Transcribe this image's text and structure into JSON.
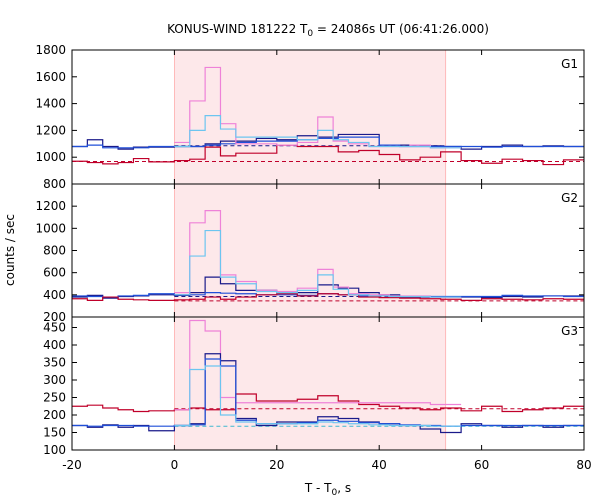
{
  "chart_data": {
    "type": "line",
    "title_main": "KONUS-WIND 181222 T",
    "title_sub": "0",
    "title_rest": " = 24086s UT (06:41:26.000)",
    "xlabel_main": "T - T",
    "xlabel_sub": "0",
    "xlabel_rest": ", s",
    "ylabel": "counts / sec",
    "xlim": [
      -20,
      80
    ],
    "x_ticks": [
      -20,
      0,
      20,
      40,
      60,
      80
    ],
    "shaded_interval": [
      0,
      53
    ],
    "colors": {
      "shade": "#fde8ea",
      "shade_edge": "#ff9999",
      "pink": "#ee82d8",
      "sky": "#6cc5f0",
      "navy": "#1a1a8a",
      "crimson": "#c0002a",
      "blue": "#1f4fd8",
      "teal": "#3fb8d0"
    },
    "panels": [
      {
        "label": "G1",
        "ylim": [
          800,
          1800
        ],
        "y_ticks": [
          800,
          1000,
          1200,
          1400,
          1600,
          1800
        ],
        "bg_lines": [
          {
            "y": 1085,
            "x_from": 0,
            "x_to": 53,
            "color": "navy",
            "dash": true
          },
          {
            "y": 968,
            "x_from": -20,
            "x_to": 80,
            "color": "crimson",
            "dash": true
          }
        ],
        "series": [
          {
            "color": "navy",
            "x": [
              -20,
              -17,
              -14,
              -11,
              -8,
              -5,
              0,
              3,
              6,
              9,
              12,
              16,
              20,
              24,
              28,
              32,
              36,
              40,
              44,
              48,
              52,
              56,
              60,
              64,
              68,
              72,
              76,
              80
            ],
            "y": [
              1080,
              1130,
              1080,
              1060,
              1075,
              1075,
              1080,
              1080,
              1100,
              1120,
              1120,
              1140,
              1130,
              1160,
              1150,
              1170,
              1170,
              1090,
              1090,
              1085,
              1080,
              1060,
              1080,
              1090,
              1080,
              1085,
              1080,
              1080
            ]
          },
          {
            "color": "blue",
            "x": [
              -20,
              -17,
              -14,
              -11,
              -8,
              -5,
              0,
              3,
              6,
              9,
              12,
              16,
              20,
              24,
              28,
              32,
              36,
              40,
              44,
              48,
              52,
              56,
              60,
              64,
              68,
              72,
              76,
              80
            ],
            "y": [
              1080,
              1090,
              1070,
              1070,
              1070,
              1080,
              1080,
              1080,
              1090,
              1100,
              1110,
              1120,
              1120,
              1130,
              1140,
              1150,
              1150,
              1090,
              1080,
              1080,
              1080,
              1080,
              1075,
              1080,
              1080,
              1080,
              1080,
              1080
            ]
          },
          {
            "color": "crimson",
            "x": [
              -20,
              -17,
              -14,
              -11,
              -8,
              -5,
              0,
              3,
              6,
              9,
              12,
              16,
              20,
              24,
              28,
              32,
              36,
              40,
              44,
              48,
              52,
              56,
              60,
              64,
              68,
              72,
              76,
              80
            ],
            "y": [
              970,
              960,
              950,
              960,
              990,
              965,
              975,
              985,
              1075,
              1010,
              1030,
              1030,
              1090,
              1080,
              1080,
              1040,
              1050,
              1020,
              980,
              1000,
              1040,
              975,
              955,
              985,
              975,
              945,
              980,
              975
            ]
          },
          {
            "color": "pink",
            "x": [
              0,
              3,
              6,
              9,
              12,
              16,
              20,
              24,
              28,
              31,
              34,
              38,
              42,
              46,
              50,
              53
            ],
            "y": [
              1110,
              1420,
              1670,
              1250,
              1100,
              1100,
              1090,
              1110,
              1300,
              1120,
              1100,
              1080,
              1080,
              1090,
              1070,
              1070
            ]
          },
          {
            "color": "sky",
            "x": [
              0,
              3,
              6,
              9,
              12,
              16,
              20,
              24,
              28,
              31,
              34,
              38,
              42,
              46,
              50,
              53
            ],
            "y": [
              1080,
              1200,
              1310,
              1210,
              1150,
              1150,
              1150,
              1130,
              1200,
              1130,
              1110,
              1080,
              1080,
              1080,
              1070,
              1070
            ]
          }
        ]
      },
      {
        "label": "G2",
        "ylim": [
          200,
          1400
        ],
        "y_ticks": [
          200,
          400,
          600,
          800,
          1000,
          1200
        ],
        "bg_lines": [
          {
            "y": 385,
            "x_from": 0,
            "x_to": 53,
            "color": "navy",
            "dash": true
          },
          {
            "y": 345,
            "x_from": 0,
            "x_to": 80,
            "color": "crimson",
            "dash": true
          }
        ],
        "series": [
          {
            "color": "navy",
            "x": [
              -20,
              -17,
              -14,
              -11,
              -8,
              -5,
              0,
              3,
              6,
              9,
              12,
              16,
              20,
              24,
              28,
              32,
              36,
              40,
              44,
              48,
              52,
              56,
              60,
              64,
              68,
              72,
              76,
              80
            ],
            "y": [
              380,
              395,
              370,
              385,
              390,
              400,
              395,
              420,
              560,
              500,
              440,
              440,
              420,
              420,
              490,
              460,
              420,
              400,
              380,
              380,
              380,
              380,
              375,
              385,
              380,
              390,
              390,
              380
            ]
          },
          {
            "color": "blue",
            "x": [
              -20,
              -17,
              -14,
              -11,
              -8,
              -5,
              0,
              3,
              6,
              9,
              12,
              16,
              20,
              24,
              28,
              32,
              36,
              40,
              44,
              48,
              52,
              56,
              60,
              64,
              68,
              72,
              76,
              80
            ],
            "y": [
              390,
              385,
              380,
              390,
              395,
              410,
              400,
              400,
              420,
              415,
              410,
              400,
              400,
              395,
              410,
              400,
              390,
              390,
              385,
              385,
              385,
              385,
              385,
              395,
              390,
              390,
              385,
              385
            ]
          },
          {
            "color": "crimson",
            "x": [
              -20,
              -17,
              -14,
              -11,
              -8,
              -5,
              0,
              3,
              6,
              9,
              12,
              16,
              20,
              24,
              28,
              32,
              36,
              40,
              44,
              48,
              52,
              56,
              60,
              64,
              68,
              72,
              76,
              80
            ],
            "y": [
              365,
              350,
              380,
              360,
              355,
              350,
              355,
              360,
              380,
              360,
              380,
              400,
              410,
              390,
              410,
              400,
              380,
              375,
              370,
              365,
              360,
              350,
              365,
              360,
              355,
              365,
              360,
              360
            ]
          },
          {
            "color": "pink",
            "x": [
              0,
              3,
              6,
              9,
              12,
              16,
              20,
              24,
              28,
              31,
              34,
              38,
              42,
              46,
              50,
              53
            ],
            "y": [
              420,
              1050,
              1160,
              580,
              520,
              440,
              430,
              460,
              630,
              470,
              410,
              400,
              390,
              390,
              380,
              380
            ]
          },
          {
            "color": "sky",
            "x": [
              0,
              3,
              6,
              9,
              12,
              16,
              20,
              24,
              28,
              31,
              34,
              38,
              42,
              46,
              50,
              53
            ],
            "y": [
              400,
              750,
              980,
              560,
              500,
              430,
              420,
              440,
              580,
              450,
              400,
              390,
              385,
              385,
              380,
              380
            ]
          }
        ]
      },
      {
        "label": "G3",
        "ylim": [
          100,
          480
        ],
        "y_ticks": [
          100,
          150,
          200,
          250,
          300,
          350,
          400,
          450
        ],
        "bg_lines": [
          {
            "y": 218,
            "x_from": 0,
            "x_to": 80,
            "color": "crimson",
            "dash": true
          },
          {
            "y": 168,
            "x_from": 0,
            "x_to": 80,
            "color": "teal",
            "dash": true
          }
        ],
        "series": [
          {
            "color": "crimson",
            "x": [
              -20,
              -17,
              -14,
              -11,
              -8,
              -5,
              0,
              3,
              6,
              9,
              12,
              16,
              20,
              24,
              28,
              32,
              36,
              40,
              44,
              48,
              52,
              56,
              60,
              64,
              68,
              72,
              76,
              80
            ],
            "y": [
              225,
              228,
              220,
              215,
              210,
              212,
              215,
              220,
              215,
              215,
              260,
              240,
              240,
              245,
              255,
              240,
              230,
              225,
              220,
              215,
              220,
              212,
              225,
              210,
              215,
              220,
              225,
              215
            ]
          },
          {
            "color": "pink",
            "x": [
              0,
              3,
              6,
              9,
              12,
              16,
              20,
              24,
              28,
              31,
              34,
              38,
              42,
              46,
              50,
              53
            ],
            "y": [
              215,
              470,
              440,
              250,
              235,
              235,
              235,
              235,
              235,
              235,
              235,
              235,
              235,
              235,
              230,
              230
            ]
          },
          {
            "color": "navy",
            "x": [
              -20,
              -17,
              -14,
              -11,
              -8,
              -5,
              0,
              3,
              6,
              9,
              12,
              16,
              20,
              24,
              28,
              32,
              36,
              40,
              44,
              48,
              52,
              56,
              60,
              64,
              68,
              72,
              76,
              80
            ],
            "y": [
              170,
              165,
              172,
              165,
              170,
              155,
              170,
              175,
              375,
              355,
              190,
              170,
              180,
              180,
              195,
              190,
              180,
              175,
              170,
              160,
              150,
              175,
              170,
              165,
              170,
              165,
              170,
              170
            ]
          },
          {
            "color": "blue",
            "x": [
              -20,
              -17,
              -14,
              -11,
              -8,
              -5,
              0,
              3,
              6,
              9,
              12,
              16,
              20,
              24,
              28,
              32,
              36,
              40,
              44,
              48,
              52,
              56,
              60,
              64,
              68,
              72,
              76,
              80
            ],
            "y": [
              170,
              168,
              170,
              170,
              168,
              168,
              170,
              172,
              360,
              340,
              185,
              175,
              175,
              178,
              185,
              182,
              178,
              175,
              172,
              170,
              168,
              170,
              170,
              170,
              170,
              170,
              170,
              170
            ]
          },
          {
            "color": "sky",
            "x": [
              0,
              3,
              6,
              9,
              12,
              16,
              20,
              24,
              28,
              31,
              34,
              38,
              42,
              46,
              50,
              53
            ],
            "y": [
              170,
              330,
              340,
              200,
              180,
              175,
              175,
              175,
              180,
              178,
              175,
              172,
              170,
              170,
              168,
              168
            ]
          }
        ]
      }
    ]
  }
}
